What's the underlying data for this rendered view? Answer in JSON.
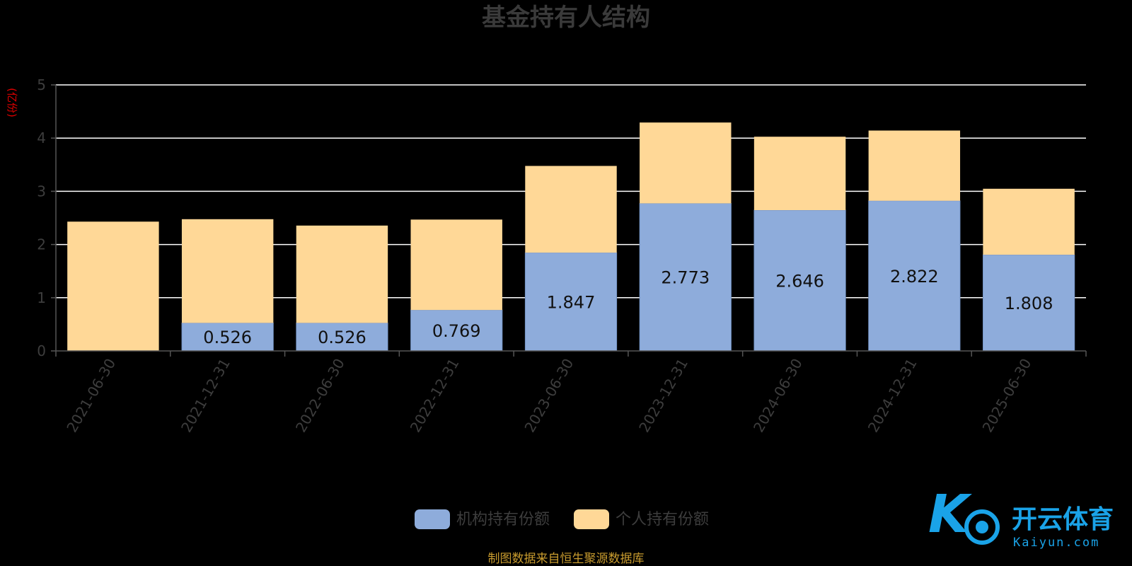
{
  "chart_data": {
    "type": "bar",
    "stacked": true,
    "title": "基金持有人结构",
    "ylabel": "(亿份)",
    "ylim": [
      0,
      5
    ],
    "yticks": [
      0,
      1,
      2,
      3,
      4,
      5
    ],
    "grid": true,
    "legend_position": "bottom",
    "categories": [
      "2021-06-30",
      "2021-12-31",
      "2022-06-30",
      "2022-12-31",
      "2023-06-30",
      "2023-12-31",
      "2024-06-30",
      "2024-12-31",
      "2025-06-30"
    ],
    "series": [
      {
        "name": "机构持有份额",
        "color": "#8eacdb",
        "values": [
          0.0,
          0.526,
          0.526,
          0.769,
          1.847,
          2.773,
          2.646,
          2.822,
          1.808
        ],
        "labels": [
          "",
          "0.526",
          "0.526",
          "0.769",
          "1.847",
          "2.773",
          "2.646",
          "2.822",
          "1.808"
        ]
      },
      {
        "name": "个人持有份额",
        "color": "#ffd897",
        "values": [
          2.43,
          1.95,
          1.83,
          1.7,
          1.63,
          1.52,
          1.38,
          1.32,
          1.24
        ]
      }
    ],
    "source": "制图数据来自恒生聚源数据库"
  },
  "watermark": {
    "brand_cn": "开云体育",
    "brand_en": "Kaiyun.com",
    "logo_letter": "K"
  },
  "colors": {
    "background": "#000000",
    "grid": "#ffffff",
    "axis_text": "#3d3d3d",
    "ylabel": "#e00000",
    "source": "#c89b2e",
    "watermark": "#1aa3e8"
  }
}
